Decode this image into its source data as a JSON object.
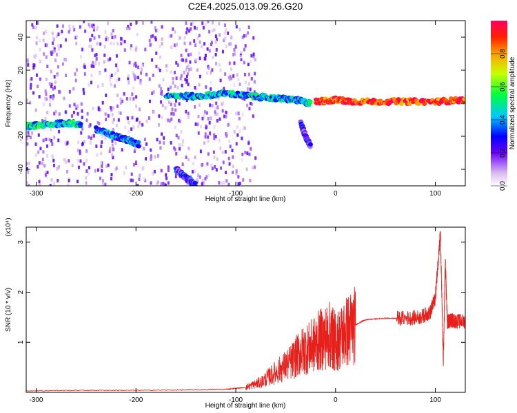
{
  "title": "C2E4.2025.013.09.26.G20",
  "chart_data": [
    {
      "type": "heatmap",
      "xlabel": "Height of straight line (km)",
      "ylabel": "Frequency (Hz)",
      "xlim": [
        -310,
        130
      ],
      "ylim": [
        -50,
        50
      ],
      "xticks": [
        "-300",
        "-200",
        "-100",
        "0",
        "100"
      ],
      "yticks": [
        "-40",
        "-20",
        "0",
        "20",
        "40"
      ],
      "colorbar": {
        "label": "Normalized spectral amplitude",
        "ticks": [
          "0.0",
          "0.2",
          "0.4",
          "0.6",
          "0.8"
        ],
        "range": [
          0,
          1
        ]
      },
      "tracks": [
        {
          "x": [
            -310,
            -290,
            -270,
            -255
          ],
          "y": [
            -14,
            -13,
            -12,
            -13
          ],
          "amp": 0.45
        },
        {
          "x": [
            -240,
            -225,
            -210,
            -197
          ],
          "y": [
            -16,
            -19,
            -22,
            -25
          ],
          "amp": 0.35
        },
        {
          "x": [
            -170,
            -140,
            -110,
            -80,
            -60,
            -40,
            -25
          ],
          "y": [
            5,
            4,
            6,
            4,
            3,
            2,
            0
          ],
          "amp": 0.4
        },
        {
          "x": [
            -20,
            0,
            20,
            60,
            100,
            130
          ],
          "y": [
            1,
            2,
            1,
            1,
            1,
            2
          ],
          "amp": 0.9
        },
        {
          "x": [
            -160,
            -150,
            -140
          ],
          "y": [
            -40,
            -45,
            -50
          ],
          "amp": 0.25
        },
        {
          "x": [
            -35,
            -30,
            -25
          ],
          "y": [
            -12,
            -20,
            -26
          ],
          "amp": 0.25
        }
      ]
    },
    {
      "type": "line",
      "xlabel": "Height of straight line (km)",
      "ylabel": "SNR (10 * v/v)",
      "scale_label": "(x10⁴)",
      "xlim": [
        -310,
        130
      ],
      "ylim": [
        0,
        3.3
      ],
      "xticks": [
        "-300",
        "-200",
        "-100",
        "0",
        "100"
      ],
      "yticks": [
        "1",
        "2",
        "3"
      ],
      "series": [
        {
          "color": "#e8201c",
          "x": [
            -310,
            -250,
            -200,
            -150,
            -110,
            -90,
            -75,
            -60,
            -45,
            -35,
            -25,
            -15,
            -5,
            0,
            10,
            20,
            30,
            50,
            70,
            85,
            95,
            100,
            105,
            108,
            110,
            112,
            115,
            120,
            130
          ],
          "y": [
            0.03,
            0.04,
            0.04,
            0.05,
            0.06,
            0.1,
            0.2,
            0.4,
            0.6,
            0.8,
            0.9,
            1.05,
            1.15,
            1.0,
            1.2,
            1.35,
            1.45,
            1.48,
            1.48,
            1.5,
            1.6,
            1.9,
            3.2,
            0.6,
            2.6,
            1.4,
            1.45,
            1.42,
            1.42
          ]
        }
      ]
    }
  ]
}
